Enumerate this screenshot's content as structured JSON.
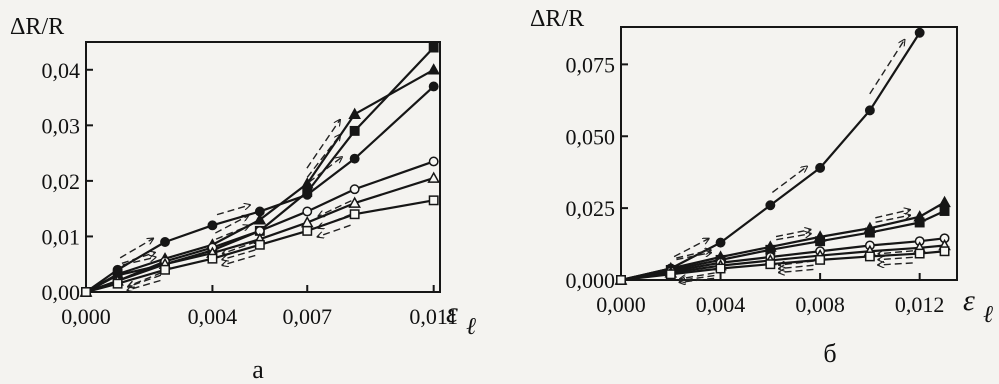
{
  "chart_data": [
    {
      "type": "line",
      "panel_label": "а",
      "ylabel": "ΔR/R",
      "xlabel_symbol": "ε",
      "xlabel_subscript": "ℓ",
      "xlim": [
        0,
        0.0112
      ],
      "ylim": [
        0,
        0.045
      ],
      "x_tick_values": [
        0.0,
        0.004,
        0.007,
        0.011
      ],
      "x_tick_labels": [
        "0,000",
        "0,004",
        "0,007",
        "0,011"
      ],
      "y_tick_values": [
        0.0,
        0.01,
        0.02,
        0.03,
        0.04
      ],
      "y_tick_labels": [
        "0,00",
        "0,01",
        "0,02",
        "0,03",
        "0,04"
      ],
      "grid": false,
      "series": [
        {
          "marker": "filled-square",
          "x": [
            0,
            0.001,
            0.0025,
            0.004,
            0.0055,
            0.007,
            0.0085,
            0.011
          ],
          "y": [
            0,
            0.003,
            0.005,
            0.0075,
            0.011,
            0.018,
            0.029,
            0.044
          ]
        },
        {
          "marker": "filled-triangle",
          "x": [
            0,
            0.001,
            0.0025,
            0.004,
            0.0055,
            0.007,
            0.0085,
            0.011
          ],
          "y": [
            0,
            0.0032,
            0.006,
            0.0085,
            0.013,
            0.0195,
            0.032,
            0.04
          ]
        },
        {
          "marker": "filled-circle",
          "x": [
            0,
            0.001,
            0.0025,
            0.004,
            0.0055,
            0.007,
            0.0085,
            0.011
          ],
          "y": [
            0,
            0.004,
            0.009,
            0.012,
            0.0145,
            0.0175,
            0.024,
            0.037
          ]
        },
        {
          "marker": "open-circle",
          "x": [
            0,
            0.001,
            0.0025,
            0.004,
            0.0055,
            0.007,
            0.0085,
            0.011
          ],
          "y": [
            0,
            0.002,
            0.0055,
            0.008,
            0.011,
            0.0145,
            0.0185,
            0.0235
          ]
        },
        {
          "marker": "open-triangle",
          "x": [
            0,
            0.001,
            0.0025,
            0.004,
            0.0055,
            0.007,
            0.0085,
            0.011
          ],
          "y": [
            0,
            0.002,
            0.005,
            0.007,
            0.0095,
            0.0125,
            0.016,
            0.0205
          ]
        },
        {
          "marker": "open-square",
          "x": [
            0,
            0.001,
            0.0025,
            0.004,
            0.0055,
            0.007,
            0.0085,
            0.011
          ],
          "y": [
            0,
            0.0015,
            0.004,
            0.006,
            0.0085,
            0.011,
            0.014,
            0.0165
          ]
        }
      ]
    },
    {
      "type": "line",
      "panel_label": "б",
      "ylabel": "ΔR/R",
      "xlabel_symbol": "ε",
      "xlabel_subscript": "ℓ",
      "xlim": [
        0,
        0.0135
      ],
      "ylim": [
        0,
        0.088
      ],
      "x_tick_values": [
        0.0,
        0.004,
        0.008,
        0.012
      ],
      "x_tick_labels": [
        "0,000",
        "0,004",
        "0,008",
        "0,012"
      ],
      "y_tick_values": [
        0.0,
        0.025,
        0.05,
        0.075
      ],
      "y_tick_labels": [
        "0,000",
        "0,025",
        "0,050",
        "0,075"
      ],
      "grid": false,
      "series": [
        {
          "marker": "filled-circle",
          "x": [
            0,
            0.002,
            0.004,
            0.006,
            0.008,
            0.01,
            0.012
          ],
          "y": [
            0,
            0.004,
            0.013,
            0.026,
            0.039,
            0.059,
            0.086
          ]
        },
        {
          "marker": "filled-triangle",
          "x": [
            0,
            0.002,
            0.004,
            0.006,
            0.008,
            0.01,
            0.012,
            0.013
          ],
          "y": [
            0,
            0.004,
            0.008,
            0.0115,
            0.015,
            0.018,
            0.022,
            0.027
          ]
        },
        {
          "marker": "filled-square",
          "x": [
            0,
            0.002,
            0.004,
            0.006,
            0.008,
            0.01,
            0.012,
            0.013
          ],
          "y": [
            0,
            0.0035,
            0.007,
            0.0105,
            0.0135,
            0.0165,
            0.02,
            0.024
          ]
        },
        {
          "marker": "open-circle",
          "x": [
            0,
            0.002,
            0.004,
            0.006,
            0.008,
            0.01,
            0.012,
            0.013
          ],
          "y": [
            0,
            0.003,
            0.006,
            0.008,
            0.01,
            0.012,
            0.0135,
            0.0145
          ]
        },
        {
          "marker": "open-triangle",
          "x": [
            0,
            0.002,
            0.004,
            0.006,
            0.008,
            0.01,
            0.012,
            0.013
          ],
          "y": [
            0,
            0.0025,
            0.005,
            0.0068,
            0.0085,
            0.01,
            0.0112,
            0.012
          ]
        },
        {
          "marker": "open-square",
          "x": [
            0,
            0.002,
            0.004,
            0.006,
            0.008,
            0.01,
            0.012,
            0.013
          ],
          "y": [
            0,
            0.002,
            0.004,
            0.0055,
            0.007,
            0.0082,
            0.0092,
            0.01
          ]
        }
      ]
    }
  ]
}
